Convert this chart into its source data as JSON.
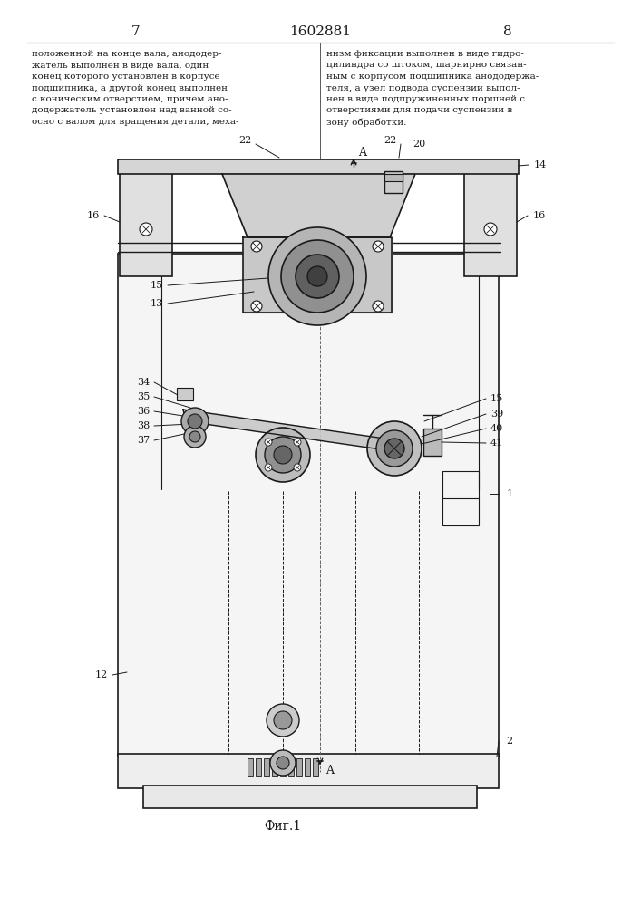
{
  "page_number_left": "7",
  "page_number_right": "8",
  "patent_number": "1602881",
  "text_left": "положенной на конце вала, анододер-\nжатель выполнен в виде вала, один\nконец которого установлен в корпусе\nподшипника, а другой конец выполнен\nс коническим отверстием, причем ано-\nдодержатель установлен над ванной со-\nосно с валом для вращения детали, меха-",
  "text_right": "низм фиксации выполнен в виде гидро-\nцилиндра со штоком, шарнирно связан-\nным с корпусом подшипника анододержа-\nтеля, а узел подвода суспензии выпол-\nнен в виде подпружиненных поршней с\nотверстиями для подачи суспензии в\nзону обработки.",
  "figure_caption": "Фиг.1",
  "bg_color": "#ffffff",
  "line_color": "#1a1a1a",
  "text_color": "#1a1a1a"
}
